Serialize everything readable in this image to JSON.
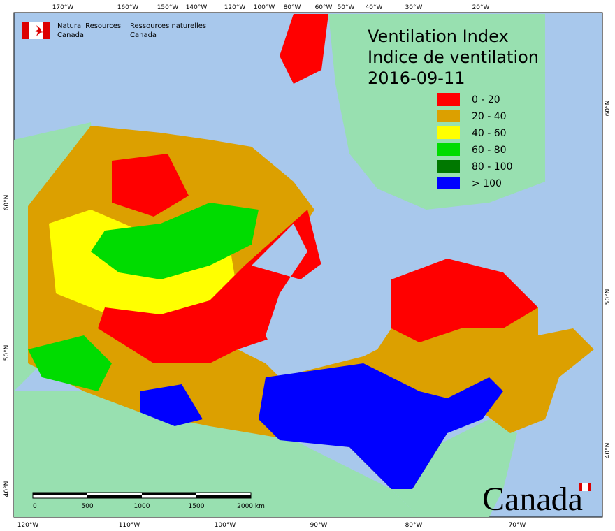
{
  "header": {
    "agency_en": "Natural Resources",
    "agency_en_2": "Canada",
    "agency_fr": "Ressources naturelles",
    "agency_fr_2": "Canada"
  },
  "title": {
    "line1": "Ventilation Index",
    "line2": "Indice de ventilation",
    "date": "2016-09-11"
  },
  "legend": [
    {
      "label": "0 - 20",
      "color": "#ff0000"
    },
    {
      "label": "20 - 40",
      "color": "#dca000"
    },
    {
      "label": "40 - 60",
      "color": "#ffff00"
    },
    {
      "label": "60 - 80",
      "color": "#00dc00"
    },
    {
      "label": "80 - 100",
      "color": "#007800"
    },
    {
      "label": "> 100",
      "color": "#0000ff"
    }
  ],
  "graticule": {
    "top": [
      "170°W",
      "160°W",
      "150°W",
      "140°W",
      "120°W",
      "100°W",
      "80°W",
      "60°W",
      "50°W",
      "40°W",
      "30°W",
      "20°W"
    ],
    "bottom": [
      "120°W",
      "110°W",
      "100°W",
      "90°W",
      "80°W",
      "70°W"
    ],
    "left": [
      "60°N",
      "50°N",
      "40°N"
    ],
    "right": [
      "60°N",
      "50°N",
      "40°N"
    ]
  },
  "scale_bar": {
    "labels": [
      "0",
      "500",
      "1000",
      "1500",
      "2000 km"
    ]
  },
  "wordmark": "Canada"
}
